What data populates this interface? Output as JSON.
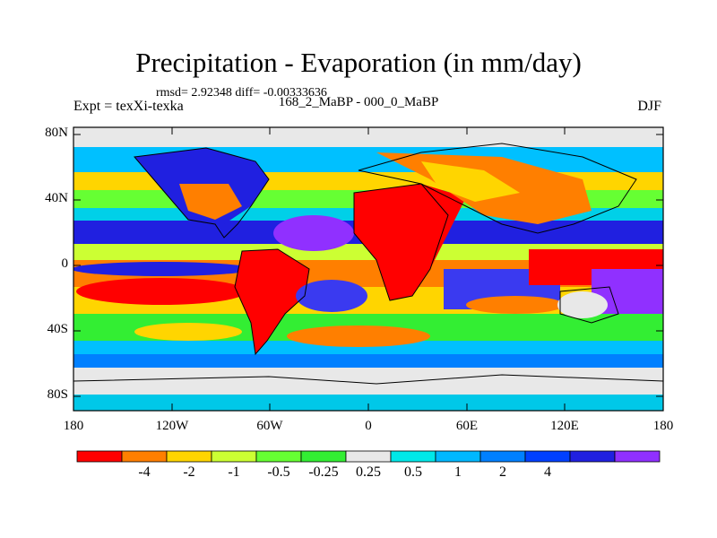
{
  "title": "Precipitation - Evaporation (in mm/day)",
  "stats": "rmsd= 2.92348 diff= -0.00333636",
  "left_label": "Expt = texXi-texka",
  "center_label": "168_2_MaBP - 000_0_MaBP",
  "right_label": "DJF",
  "y_ticks": [
    "80N",
    "40N",
    "0",
    "40S",
    "80S"
  ],
  "x_ticks": [
    "180",
    "120W",
    "60W",
    "0",
    "60E",
    "120E",
    "180"
  ],
  "colorbar": {
    "colors": [
      "#ff0000",
      "#ff7f00",
      "#ffd500",
      "#ccff33",
      "#66ff33",
      "#33ee33",
      "#e8e8e8",
      "#00e8e8",
      "#00b8ff",
      "#0080ff",
      "#0040ff",
      "#2020e0",
      "#9030ff"
    ],
    "labels": [
      "-4",
      "-2",
      "-1",
      "-0.5",
      "-0.25",
      "0.25",
      "0.5",
      "1",
      "2",
      "4"
    ]
  }
}
